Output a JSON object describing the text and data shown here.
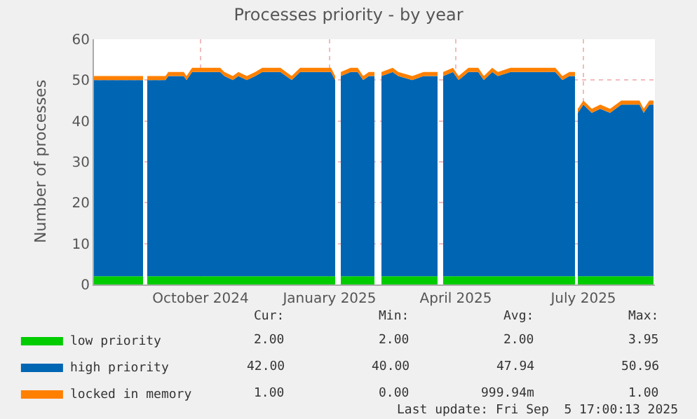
{
  "chart_data": {
    "type": "area",
    "stacked": true,
    "title": "Processes priority - by year",
    "ylabel": "Number of processes",
    "x": [
      "2024-08-01",
      "2024-09-05",
      "2024-09-06",
      "2024-09-08",
      "2024-09-21",
      "2024-09-23",
      "2024-10-04",
      "2024-10-06",
      "2024-10-10",
      "2024-10-30",
      "2024-11-02",
      "2024-11-08",
      "2024-11-12",
      "2024-11-18",
      "2024-11-24",
      "2024-11-29",
      "2024-12-12",
      "2024-12-16",
      "2024-12-20",
      "2024-12-26",
      "2025-01-17",
      "2025-01-20",
      "2025-01-22",
      "2025-01-24",
      "2025-01-31",
      "2025-02-05",
      "2025-02-09",
      "2025-02-13",
      "2025-02-17",
      "2025-02-20",
      "2025-02-22",
      "2025-03-02",
      "2025-03-06",
      "2025-03-16",
      "2025-03-24",
      "2025-04-03",
      "2025-04-05",
      "2025-04-07",
      "2025-04-14",
      "2025-04-18",
      "2025-04-25",
      "2025-05-02",
      "2025-05-06",
      "2025-05-12",
      "2025-05-16",
      "2025-05-25",
      "2025-06-26",
      "2025-07-01",
      "2025-07-06",
      "2025-07-10",
      "2025-07-11",
      "2025-07-12",
      "2025-07-16",
      "2025-07-22",
      "2025-07-28",
      "2025-08-04",
      "2025-08-12",
      "2025-08-25",
      "2025-08-28",
      "2025-09-01",
      "2025-09-04"
    ],
    "series": [
      {
        "name": "low priority",
        "color": "#00cc00",
        "values": [
          2,
          2,
          null,
          2,
          2,
          2,
          2,
          2,
          2,
          2,
          2,
          2,
          2,
          2,
          2,
          2,
          2,
          2,
          2,
          2,
          2,
          2,
          null,
          2,
          2,
          2,
          2,
          2,
          2,
          null,
          2,
          2,
          2,
          2,
          2,
          2,
          null,
          2,
          2,
          2,
          2,
          2,
          2,
          2,
          2,
          2,
          2,
          2,
          2,
          2,
          null,
          2,
          2,
          2,
          2,
          2,
          2,
          2,
          2,
          2,
          2
        ]
      },
      {
        "name": "high priority",
        "color": "#0066b3",
        "values": [
          48,
          48,
          null,
          48,
          48,
          49,
          49,
          48,
          50,
          50,
          49,
          48,
          49,
          48,
          49,
          50,
          50,
          49,
          48,
          50,
          50,
          48,
          null,
          49,
          50,
          50,
          48,
          49,
          49,
          null,
          49,
          50,
          49,
          48,
          49,
          49,
          null,
          49,
          50,
          48,
          50,
          50,
          48,
          50,
          49,
          50,
          50,
          48,
          49,
          49,
          null,
          40,
          42,
          40,
          41,
          40,
          42,
          42,
          40,
          42,
          42
        ]
      },
      {
        "name": "locked in memory",
        "color": "#ff8000",
        "values": [
          1,
          1,
          null,
          1,
          1,
          1,
          1,
          1,
          1,
          1,
          1,
          1,
          1,
          1,
          1,
          1,
          1,
          1,
          1,
          1,
          1,
          1,
          null,
          1,
          1,
          1,
          1,
          1,
          1,
          null,
          1,
          1,
          1,
          1,
          1,
          1,
          null,
          1,
          1,
          1,
          1,
          1,
          1,
          1,
          1,
          1,
          1,
          1,
          1,
          1,
          null,
          1,
          1,
          1,
          1,
          1,
          1,
          1,
          1,
          1,
          1
        ]
      }
    ],
    "xlim": [
      "2024-08-01",
      "2025-09-05"
    ],
    "xticks": [
      {
        "value": "2024-10-16",
        "label": "October 2024"
      },
      {
        "value": "2025-01-16",
        "label": "January 2025"
      },
      {
        "value": "2025-04-16",
        "label": "April 2025"
      },
      {
        "value": "2025-07-16",
        "label": "July 2025"
      }
    ],
    "ylim": [
      0,
      60
    ],
    "yticks": [
      0,
      10,
      20,
      30,
      40,
      50,
      60
    ],
    "grid": true,
    "legend": "bottom left",
    "annotations": [
      "Cur:",
      "Min:",
      "Avg:",
      "Max:",
      "2.00",
      "2.00",
      "2.00",
      "3.95",
      "42.00",
      "40.00",
      "47.94",
      "50.96",
      "1.00",
      "0.00",
      "999.94m",
      "1.00",
      "Last update: Fri Sep  5 17:00:13 2025"
    ]
  }
}
